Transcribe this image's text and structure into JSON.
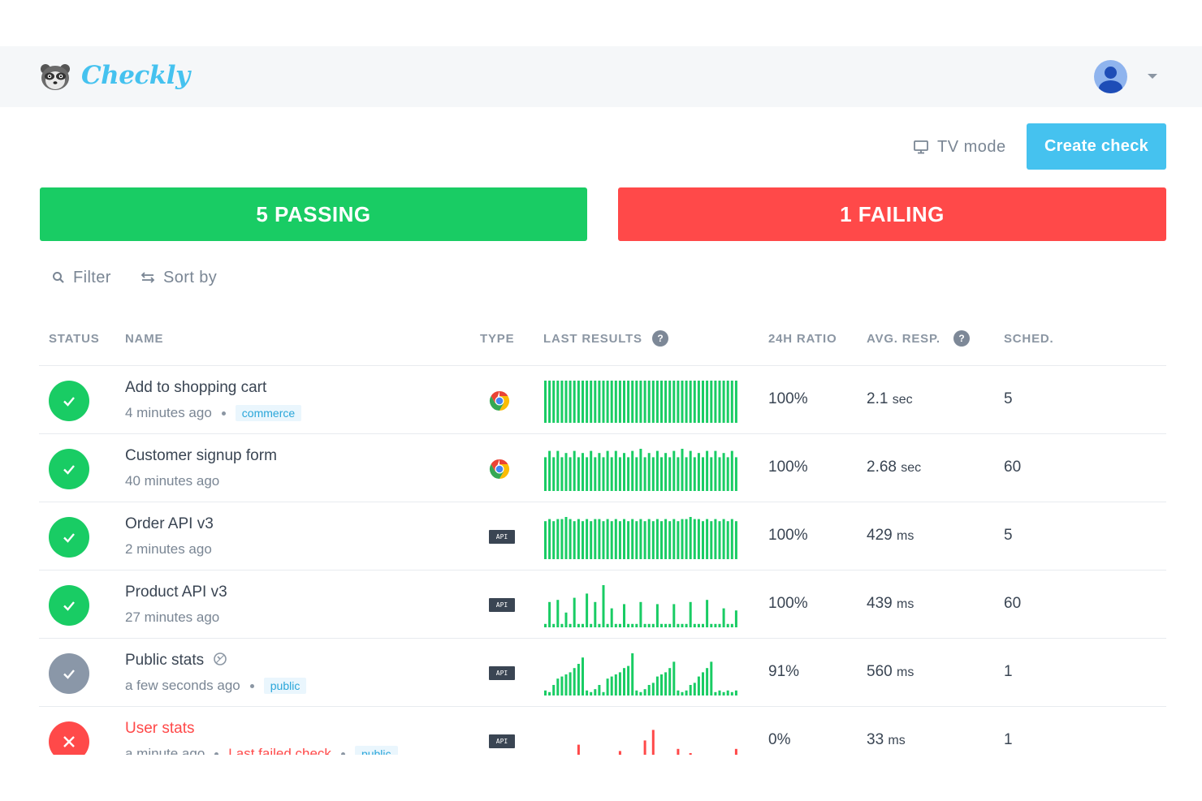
{
  "app": {
    "brand": "Checkly"
  },
  "header": {
    "avatar_icon": "user-avatar",
    "menu_icon": "caret-down"
  },
  "toolbar": {
    "tv_mode_label": "TV mode",
    "create_label": "Create check"
  },
  "summary": {
    "passing_label": "5 PASSING",
    "failing_label": "1 FAILING",
    "passing_color": "#19cc64",
    "failing_color": "#ff4949"
  },
  "tools": {
    "filter_label": "Filter",
    "sort_label": "Sort by"
  },
  "columns": {
    "status": "STATUS",
    "name": "NAME",
    "type": "TYPE",
    "last_results": "LAST RESULTS",
    "ratio": "24H RATIO",
    "avg_resp": "AVG. RESP.",
    "sched": "SCHED.",
    "help_glyph": "?"
  },
  "checks": [
    {
      "status": "passing",
      "name": "Add to shopping cart",
      "time": "4 minutes ago",
      "tag": "commerce",
      "type": "browser",
      "ratio": "100%",
      "resp_value": "2.1",
      "resp_unit": "sec",
      "sched": "5",
      "results": [
        1,
        1,
        1,
        1,
        1,
        1,
        1,
        1,
        1,
        1,
        1,
        1,
        1,
        1,
        1,
        1,
        1,
        1,
        1,
        1,
        1,
        1,
        1,
        1,
        1,
        1,
        1,
        1,
        1,
        1,
        1,
        1,
        1,
        1,
        1,
        1,
        1,
        1,
        1,
        1,
        1,
        1,
        1,
        1,
        1,
        1,
        1
      ]
    },
    {
      "status": "passing",
      "name": "Customer signup form",
      "time": "40 minutes ago",
      "type": "browser",
      "ratio": "100%",
      "resp_value": "2.68",
      "resp_unit": "sec",
      "sched": "60",
      "results": [
        0.8,
        0.95,
        0.8,
        0.95,
        0.8,
        0.9,
        0.8,
        0.95,
        0.8,
        0.9,
        0.8,
        0.95,
        0.8,
        0.9,
        0.8,
        0.95,
        0.8,
        0.95,
        0.8,
        0.9,
        0.8,
        0.95,
        0.8,
        1,
        0.8,
        0.9,
        0.8,
        0.95,
        0.8,
        0.9,
        0.8,
        0.95,
        0.8,
        1,
        0.8,
        0.95,
        0.8,
        0.9,
        0.8,
        0.95,
        0.8,
        0.95,
        0.8,
        0.9,
        0.8,
        0.95,
        0.8
      ]
    },
    {
      "status": "passing",
      "name": "Order API v3",
      "time": "2 minutes ago",
      "type": "api",
      "ratio": "100%",
      "resp_value": "429",
      "resp_unit": "ms",
      "sched": "5",
      "results": [
        0.9,
        0.95,
        0.9,
        0.95,
        0.95,
        1,
        0.95,
        0.9,
        0.95,
        0.9,
        0.95,
        0.9,
        0.95,
        0.95,
        0.9,
        0.95,
        0.9,
        0.95,
        0.9,
        0.95,
        0.9,
        0.95,
        0.9,
        0.95,
        0.9,
        0.95,
        0.9,
        0.95,
        0.9,
        0.95,
        0.9,
        0.95,
        0.9,
        0.95,
        0.95,
        1,
        0.95,
        0.95,
        0.9,
        0.95,
        0.9,
        0.95,
        0.9,
        0.95,
        0.9,
        0.95,
        0.9
      ]
    },
    {
      "status": "passing",
      "name": "Product API v3",
      "time": "27 minutes ago",
      "type": "api",
      "ratio": "100%",
      "resp_value": "439",
      "resp_unit": "ms",
      "sched": "60",
      "results": [
        0.08,
        0.6,
        0.08,
        0.65,
        0.08,
        0.35,
        0.08,
        0.7,
        0.08,
        0.08,
        0.8,
        0.08,
        0.6,
        0.08,
        1,
        0.08,
        0.45,
        0.08,
        0.08,
        0.55,
        0.08,
        0.08,
        0.08,
        0.6,
        0.08,
        0.08,
        0.08,
        0.55,
        0.08,
        0.08,
        0.08,
        0.55,
        0.08,
        0.08,
        0.08,
        0.6,
        0.08,
        0.08,
        0.08,
        0.65,
        0.08,
        0.08,
        0.08,
        0.45,
        0.08,
        0.08,
        0.4
      ]
    },
    {
      "status": "muted",
      "name": "Public stats",
      "time": "a few seconds ago",
      "tag": "public",
      "type": "api",
      "ratio": "91%",
      "resp_value": "560",
      "resp_unit": "ms",
      "sched": "1",
      "results": [
        0.12,
        0.08,
        0.25,
        0.4,
        0.45,
        0.5,
        0.55,
        0.65,
        0.75,
        0.9,
        0.12,
        0.08,
        0.15,
        0.25,
        0.08,
        0.4,
        0.45,
        0.5,
        0.55,
        0.65,
        0.7,
        1,
        0.12,
        0.08,
        0.15,
        0.25,
        0.3,
        0.45,
        0.5,
        0.55,
        0.65,
        0.8,
        0.12,
        0.08,
        0.12,
        0.25,
        0.3,
        0.45,
        0.55,
        0.65,
        0.8,
        0.08,
        0.12,
        0.08,
        0.12,
        0.08,
        0.12
      ]
    },
    {
      "status": "failing",
      "name": "User stats",
      "time": "a minute ago",
      "last_failed": "Last failed check",
      "tag": "public",
      "type": "api",
      "ratio": "0%",
      "resp_value": "33",
      "resp_unit": "ms",
      "sched": "1",
      "results": [
        0.05,
        0.05,
        0.05,
        0.05,
        0.05,
        0.15,
        0.05,
        0.05,
        0.45,
        0.05,
        0.05,
        0.05,
        0.12,
        0.05,
        0.05,
        0.08,
        0.05,
        0.05,
        0.3,
        0.05,
        0.05,
        0.05,
        0.05,
        0.05,
        0.55,
        0.05,
        0.8,
        0.05,
        0.05,
        0.05,
        0.05,
        0.05,
        0.35,
        0.05,
        0.05,
        0.25,
        0.05,
        0.05,
        0.05,
        0.05,
        0.05,
        0.05,
        0.05,
        0.05,
        0.05,
        0.05,
        0.35
      ]
    }
  ],
  "colors": {
    "accent": "#45c2ef",
    "pass": "#19cc64",
    "fail": "#ff4949",
    "muted": "#8a97a8"
  }
}
